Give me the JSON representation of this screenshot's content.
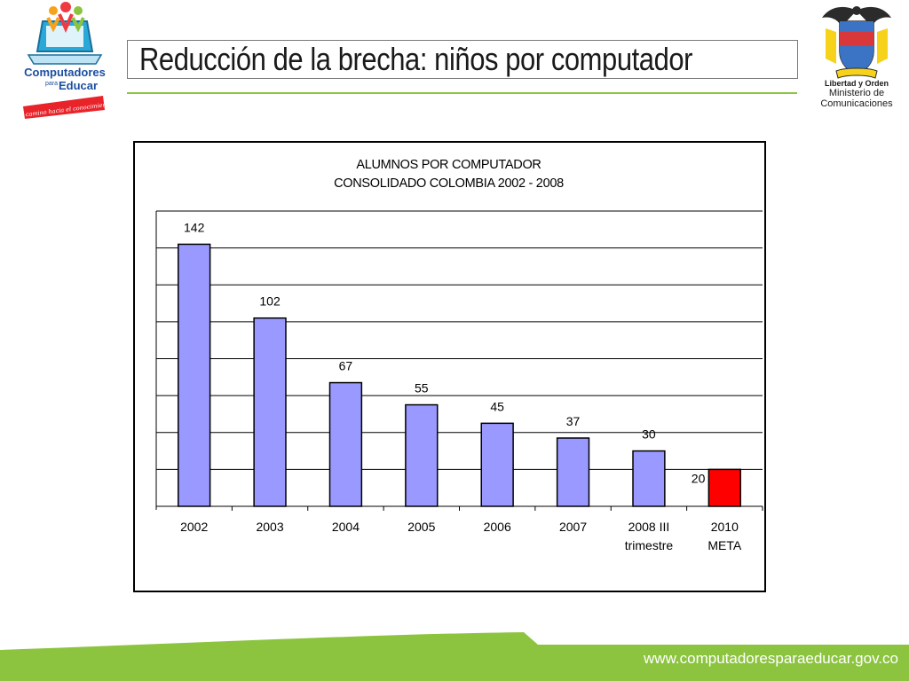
{
  "header": {
    "title": "Reducción de la brecha: niños por computador",
    "left_logo": {
      "name": "Computadores para Educar",
      "text_top": "Computadores",
      "text_para": "para",
      "text_bottom": "Educar",
      "slogan": "un camino hacia el conocimiento"
    },
    "right_logo": {
      "motto": "Libertad y Orden",
      "line1": "Ministerio de",
      "line2": "Comunicaciones"
    }
  },
  "chart_data": {
    "type": "bar",
    "title_line1": "ALUMNOS POR COMPUTADOR",
    "title_line2": "CONSOLIDADO COLOMBIA 2002 - 2008",
    "categories": [
      [
        "2002"
      ],
      [
        "2003"
      ],
      [
        "2004"
      ],
      [
        "2005"
      ],
      [
        "2006"
      ],
      [
        "2007"
      ],
      [
        "2008 III",
        "trimestre"
      ],
      [
        "2010",
        "META"
      ]
    ],
    "values": [
      142,
      102,
      67,
      55,
      45,
      37,
      30,
      20
    ],
    "data_labels": [
      "142",
      "102",
      "67",
      "55",
      "45",
      "37",
      "30",
      "20"
    ],
    "ylim": [
      0,
      160
    ],
    "grid": true,
    "y_tick_labels_shown": false,
    "colors": {
      "bar": "#9999ff",
      "target_bar": "#ff0000",
      "edge": "#000000"
    }
  },
  "footer": {
    "url": "www.computadoresparaeducar.gov.co",
    "color": "#8cc43f"
  }
}
